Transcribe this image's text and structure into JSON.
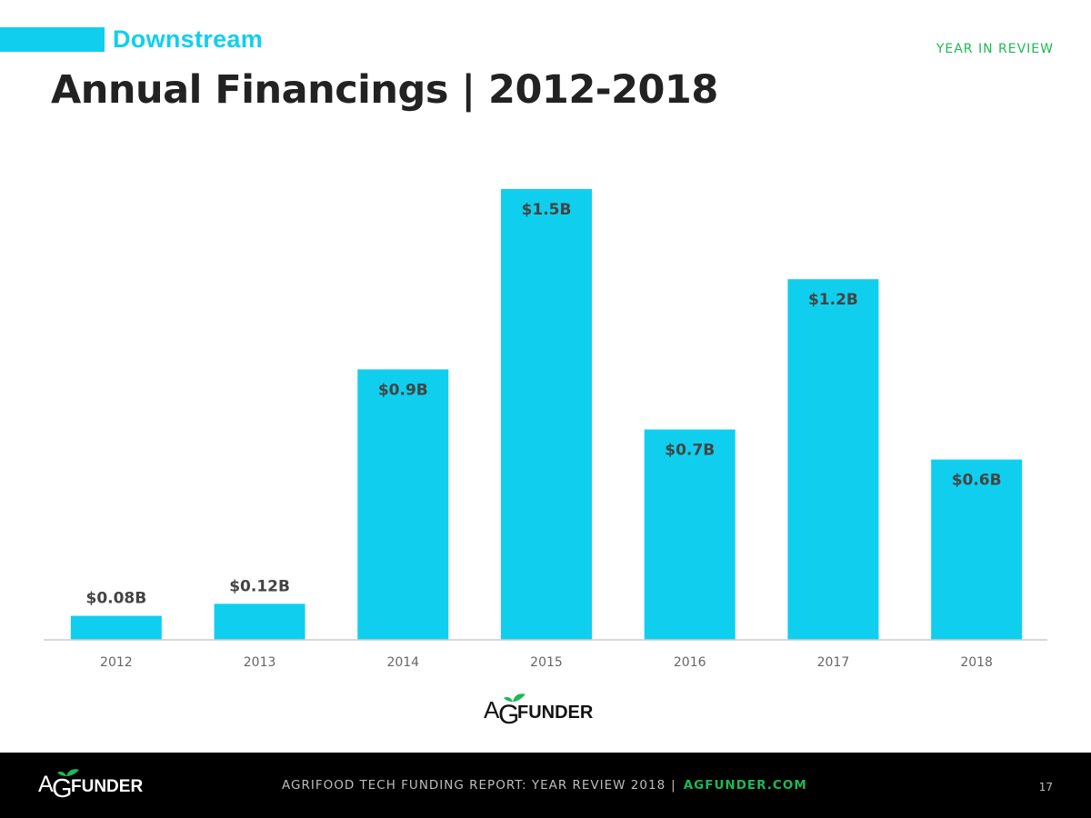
{
  "header": {
    "section_label": "Downstream",
    "title": "Annual Financings | 2012-2018",
    "tag": "YEAR IN REVIEW"
  },
  "colors": {
    "accent": "#10cfee",
    "green": "#1db954",
    "title": "#222222",
    "label": "#444444",
    "axis_text": "#666666"
  },
  "chart_data": {
    "type": "bar",
    "title": "Annual Financings | 2012-2018",
    "categories": [
      "2012",
      "2013",
      "2014",
      "2015",
      "2016",
      "2017",
      "2018"
    ],
    "values": [
      0.08,
      0.12,
      0.9,
      1.5,
      0.7,
      1.2,
      0.6
    ],
    "data_labels": [
      "$0.08B",
      "$0.12B",
      "$0.9B",
      "$1.5B",
      "$0.7B",
      "$1.2B",
      "$0.6B"
    ],
    "xlabel": "",
    "ylabel": "",
    "ylim": [
      0,
      1.5
    ],
    "grid": false,
    "unit": "$B"
  },
  "logo": {
    "icon": "agfunder-logo",
    "text_lead": "A",
    "text_g": "G",
    "text_rest": "FUNDER"
  },
  "footer": {
    "report_text": "AGRIFOOD TECH FUNDING REPORT: YEAR REVIEW 2018",
    "separator": "|",
    "site": "AGFUNDER.COM",
    "page_number": "17"
  }
}
